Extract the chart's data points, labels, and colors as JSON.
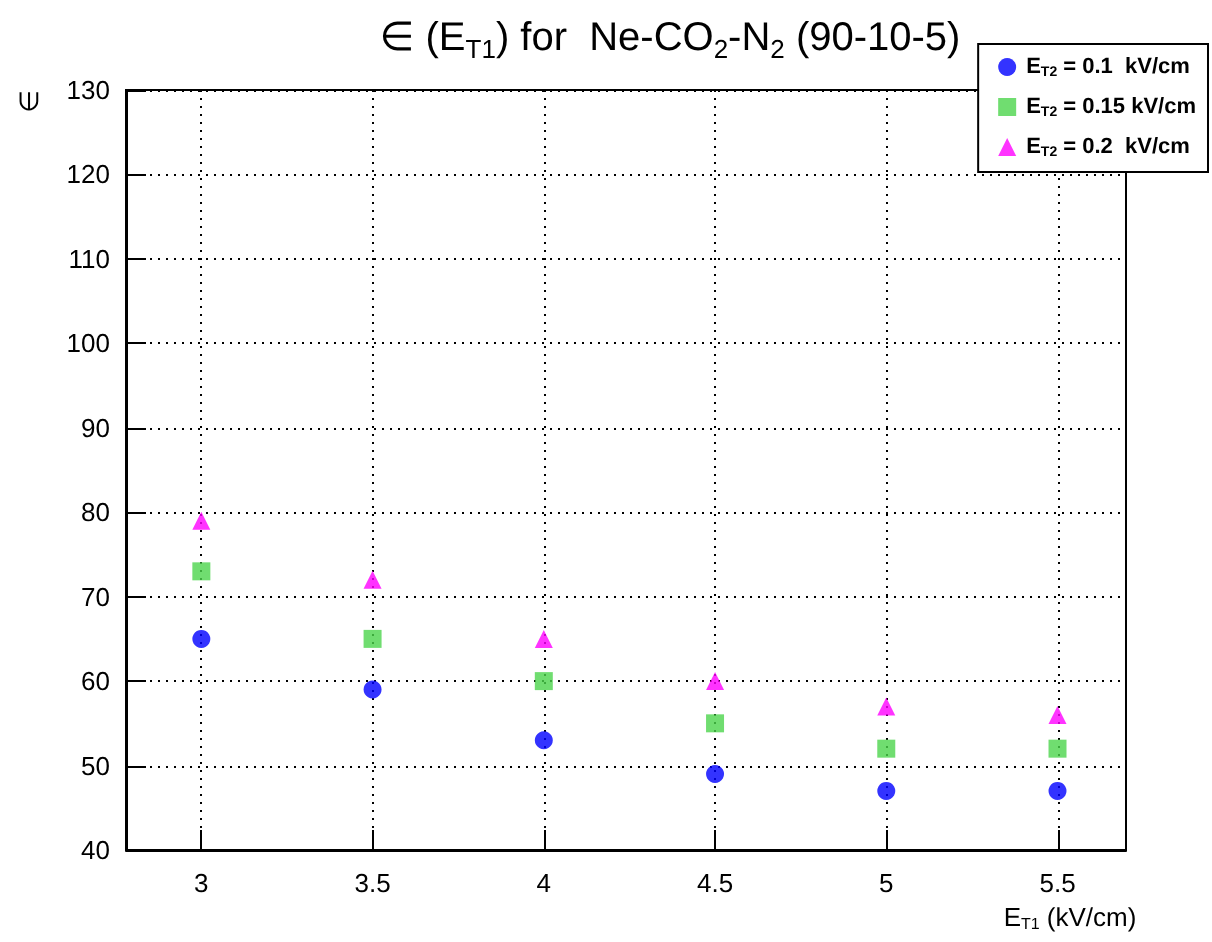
{
  "chart_data": {
    "type": "scatter",
    "title": "∈ (E$_{T1}$) for  Ne-CO$_{2}$-N$_{2}$ (90-10-5)",
    "xlabel": "E$_{T1}$ (kV/cm)",
    "ylabel": "∈",
    "x": [
      3,
      3.5,
      4,
      4.5,
      5,
      5.5
    ],
    "series": [
      {
        "name": "E$_{T2}$ = 0.1  kV/cm",
        "color": "#0000ff",
        "marker": "circle",
        "values": [
          65,
          59,
          53,
          49,
          47,
          47
        ]
      },
      {
        "name": "E$_{T2}$ = 0.15 kV/cm",
        "color": "#4cd44c",
        "marker": "square",
        "values": [
          73,
          65,
          60,
          55,
          52,
          52
        ]
      },
      {
        "name": "E$_{T2}$ = 0.2  kV/cm",
        "color": "#ff00ff",
        "marker": "triangle",
        "values": [
          79,
          72,
          65,
          60,
          57,
          56
        ]
      }
    ],
    "xlim": [
      2.78,
      5.7
    ],
    "xticks": [
      3,
      3.5,
      4,
      4.5,
      5,
      5.5
    ],
    "ylim": [
      40,
      130
    ],
    "yticks": [
      40,
      50,
      60,
      70,
      80,
      90,
      100,
      110,
      120,
      130
    ],
    "grid": true,
    "legend": "top right"
  }
}
